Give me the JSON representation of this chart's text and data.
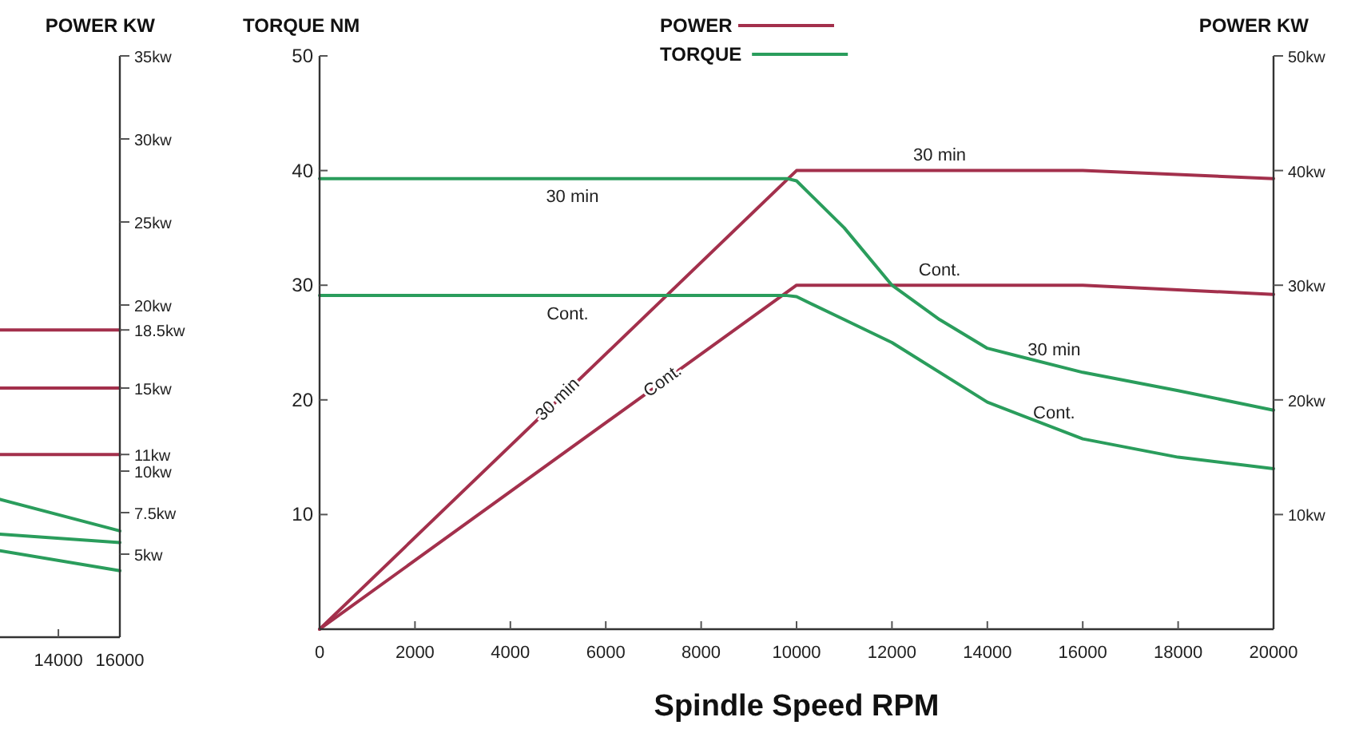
{
  "chart_data": [
    {
      "type": "line",
      "y2label": "POWER KW",
      "xlim": [
        12100,
        16000
      ],
      "xticks": [
        14000,
        16000
      ],
      "y2lim": [
        0,
        35
      ],
      "y2ticks": [
        {
          "value": 5,
          "label": "5kw"
        },
        {
          "value": 7.5,
          "label": "7.5kw"
        },
        {
          "value": 10,
          "label": "10kw"
        },
        {
          "value": 11,
          "label": "11kw"
        },
        {
          "value": 15,
          "label": "15kw"
        },
        {
          "value": 18.5,
          "label": "18.5kw"
        },
        {
          "value": 20,
          "label": "20kw"
        },
        {
          "value": 25,
          "label": "25kw"
        },
        {
          "value": 30,
          "label": "30kw"
        },
        {
          "value": 35,
          "label": "35kw"
        }
      ],
      "x": [
        12100,
        16000
      ],
      "grid": false,
      "legend": false,
      "series": [
        {
          "color": "#a3304c",
          "axis": "y2",
          "values": [
            18.5,
            18.5
          ]
        },
        {
          "color": "#a3304c",
          "axis": "y2",
          "values": [
            15,
            15
          ]
        },
        {
          "color": "#a3304c",
          "axis": "y2",
          "values": [
            11,
            11
          ]
        },
        {
          "color": "#2a9d5c",
          "axis": "y2",
          "values": [
            8.3,
            6.4
          ]
        },
        {
          "color": "#2a9d5c",
          "axis": "y2",
          "values": [
            6.2,
            5.7
          ]
        },
        {
          "color": "#2a9d5c",
          "axis": "y2",
          "values": [
            5.2,
            4.0
          ]
        }
      ]
    },
    {
      "type": "line",
      "xlabel": "Spindle Speed RPM",
      "ylabel": "TORQUE NM",
      "y2label": "POWER KW",
      "xlim": [
        0,
        20000
      ],
      "xticks": [
        0,
        2000,
        4000,
        6000,
        8000,
        10000,
        12000,
        14000,
        16000,
        18000,
        20000
      ],
      "ylim": [
        0,
        50
      ],
      "yticks": [
        10,
        20,
        30,
        40,
        50
      ],
      "y2lim": [
        0,
        50
      ],
      "y2ticks": [
        {
          "value": 10,
          "label": "10kw"
        },
        {
          "value": 20,
          "label": "20kw"
        },
        {
          "value": 30,
          "label": "30kw"
        },
        {
          "value": 40,
          "label": "40kw"
        },
        {
          "value": 50,
          "label": "50kw"
        }
      ],
      "grid": false,
      "legend": "top",
      "series": [
        {
          "name": "POWER",
          "color": "#a3304c",
          "axis": "y2",
          "x": [
            0,
            10000,
            16000,
            20000
          ],
          "values": [
            0,
            40,
            40,
            39.3
          ]
        },
        {
          "color": "#a3304c",
          "axis": "y2",
          "x": [
            0,
            10000,
            16000,
            20000
          ],
          "values": [
            0,
            30,
            30,
            29.2
          ]
        },
        {
          "name": "TORQUE",
          "color": "#2a9d5c",
          "x": [
            0,
            9800,
            10000,
            11000,
            12000,
            13000,
            14000,
            16000,
            18000,
            20000
          ],
          "values": [
            39.3,
            39.3,
            39.1,
            35,
            30,
            27,
            24.5,
            22.4,
            20.8,
            19.1
          ]
        },
        {
          "color": "#2a9d5c",
          "x": [
            0,
            9800,
            10000,
            11000,
            12000,
            14000,
            16000,
            18000,
            20000
          ],
          "values": [
            29.1,
            29.1,
            29,
            27,
            25,
            19.8,
            16.6,
            15,
            14
          ]
        }
      ],
      "annotations": [
        {
          "text": "30 min",
          "x": 5300,
          "y": 39.3
        },
        {
          "text": "Cont.",
          "x": 5200,
          "y": 29.1
        },
        {
          "text": "30 min",
          "x": 5000,
          "y": 20
        },
        {
          "text": "Cont.",
          "x": 7200,
          "y": 21.6
        },
        {
          "text": "30 min",
          "x": 13000,
          "y": 40
        },
        {
          "text": "Cont.",
          "x": 13000,
          "y": 30
        },
        {
          "text": "30 min",
          "x": 15400,
          "y": 23.03
        },
        {
          "text": "Cont.",
          "x": 15400,
          "y": 17.56
        }
      ]
    }
  ]
}
